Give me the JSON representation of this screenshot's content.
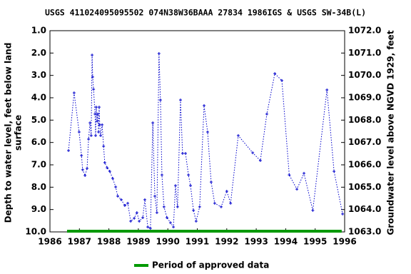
{
  "chart_data": {
    "type": "line",
    "title": "USGS 411024095095502 074N38W36BAAA 27834 1986IGS & USGS SW-34B(L)",
    "ylabel": [
      "Depth to water level, feet below land",
      "surface"
    ],
    "y2label": "Groundwater level above NGVD 1929, feet",
    "xlim": [
      1986,
      1996
    ],
    "xticks": [
      1986,
      1987,
      1988,
      1989,
      1990,
      1991,
      1992,
      1993,
      1994,
      1995,
      1996
    ],
    "ylim": [
      10,
      1
    ],
    "yticks": [
      {
        "value": 1,
        "label": "1.0"
      },
      {
        "value": 2,
        "label": "2.0"
      },
      {
        "value": 3,
        "label": "3.0"
      },
      {
        "value": 4,
        "label": "4.0"
      },
      {
        "value": 5,
        "label": "5.0"
      },
      {
        "value": 6,
        "label": "6.0"
      },
      {
        "value": 7,
        "label": "7.0"
      },
      {
        "value": 8,
        "label": "8.0"
      },
      {
        "value": 9,
        "label": "9.0"
      },
      {
        "value": 10,
        "label": "10.0"
      }
    ],
    "y2lim": [
      1063,
      1072
    ],
    "y2ticks": [
      {
        "value": 1072,
        "label": "1072.0"
      },
      {
        "value": 1071,
        "label": "1071.0"
      },
      {
        "value": 1070,
        "label": "1070.0"
      },
      {
        "value": 1069,
        "label": "1069.0"
      },
      {
        "value": 1068,
        "label": "1068.0"
      },
      {
        "value": 1067,
        "label": "1067.0"
      },
      {
        "value": 1066,
        "label": "1066.0"
      },
      {
        "value": 1065,
        "label": "1065.0"
      },
      {
        "value": 1064,
        "label": "1064.0"
      },
      {
        "value": 1063,
        "label": "1063.0"
      }
    ],
    "series": [
      {
        "color": "#0000cc",
        "x": [
          1986.63,
          1986.82,
          1986.99,
          1987.07,
          1987.11,
          1987.19,
          1987.26,
          1987.31,
          1987.36,
          1987.4,
          1987.43,
          1987.45,
          1987.48,
          1987.53,
          1987.55,
          1987.57,
          1987.6,
          1987.62,
          1987.65,
          1987.67,
          1987.69,
          1987.72,
          1987.77,
          1987.82,
          1987.86,
          1987.94,
          1988.03,
          1988.13,
          1988.23,
          1988.3,
          1988.42,
          1988.54,
          1988.64,
          1988.74,
          1988.86,
          1988.95,
          1989.03,
          1989.15,
          1989.22,
          1989.32,
          1989.41,
          1989.49,
          1989.56,
          1989.63,
          1989.7,
          1989.75,
          1989.8,
          1989.87,
          1989.97,
          1990.09,
          1990.19,
          1990.26,
          1990.33,
          1990.43,
          1990.5,
          1990.6,
          1990.7,
          1990.77,
          1990.87,
          1990.96,
          1991.08,
          1991.23,
          1991.35,
          1991.47,
          1991.59,
          1991.81,
          1992.0,
          1992.13,
          1992.39,
          1992.88,
          1993.14,
          1993.36,
          1993.63,
          1993.87,
          1994.12,
          1994.38,
          1994.62,
          1994.92,
          1995.4,
          1995.64,
          1995.93
        ],
        "values": [
          6.36,
          3.78,
          5.53,
          6.58,
          7.22,
          7.48,
          7.16,
          5.85,
          5.12,
          5.69,
          2.09,
          3.07,
          3.62,
          4.73,
          5.69,
          4.42,
          5.05,
          4.73,
          5.53,
          4.42,
          5.21,
          5.69,
          5.21,
          6.17,
          6.9,
          7.13,
          7.29,
          7.61,
          7.99,
          8.4,
          8.56,
          8.82,
          8.72,
          9.52,
          9.39,
          9.14,
          9.52,
          9.36,
          8.56,
          9.78,
          9.84,
          5.12,
          8.4,
          9.14,
          2.02,
          4.1,
          7.45,
          8.88,
          9.36,
          9.59,
          9.78,
          7.93,
          8.88,
          4.1,
          6.49,
          6.49,
          7.45,
          7.93,
          9.04,
          9.52,
          8.88,
          4.35,
          5.53,
          7.77,
          8.72,
          8.88,
          8.18,
          8.72,
          5.69,
          6.46,
          6.81,
          4.73,
          2.92,
          3.23,
          7.45,
          8.09,
          7.38,
          9.04,
          3.65,
          7.29,
          9.2
        ]
      }
    ],
    "approved_period": {
      "name": "Period of approved data",
      "color": "#009900",
      "x": [
        1986.58,
        1995.9
      ]
    }
  }
}
